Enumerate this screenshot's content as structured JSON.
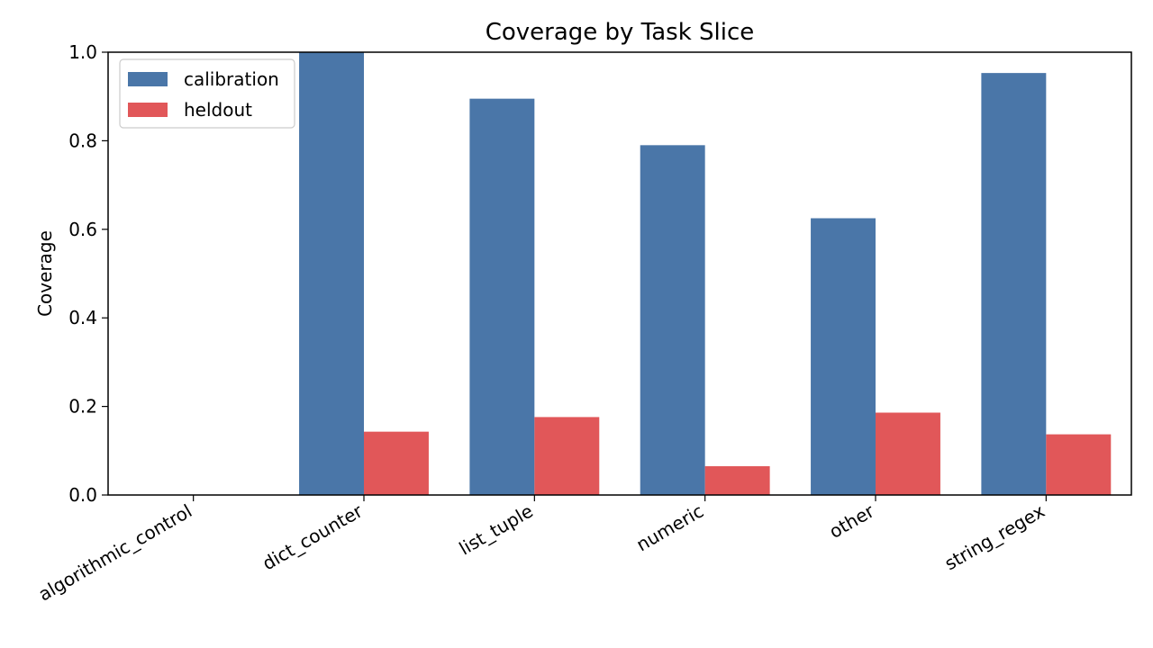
{
  "chart_data": {
    "type": "bar",
    "title": "Coverage by Task Slice",
    "xlabel": "",
    "ylabel": "Coverage",
    "ylim": [
      0,
      1.0
    ],
    "yticks": [
      "0.0",
      "0.2",
      "0.4",
      "0.6",
      "0.8",
      "1.0"
    ],
    "categories": [
      "algorithmic_control",
      "dict_counter",
      "list_tuple",
      "numeric",
      "other",
      "string_regex"
    ],
    "series": [
      {
        "name": "calibration",
        "color": "#4a76a8",
        "values": [
          0.0,
          1.0,
          0.895,
          0.79,
          0.625,
          0.953
        ]
      },
      {
        "name": "heldout",
        "color": "#e15759",
        "values": [
          0.0,
          0.143,
          0.176,
          0.065,
          0.186,
          0.137
        ]
      }
    ],
    "legend_position": "top-left",
    "grid": false
  }
}
